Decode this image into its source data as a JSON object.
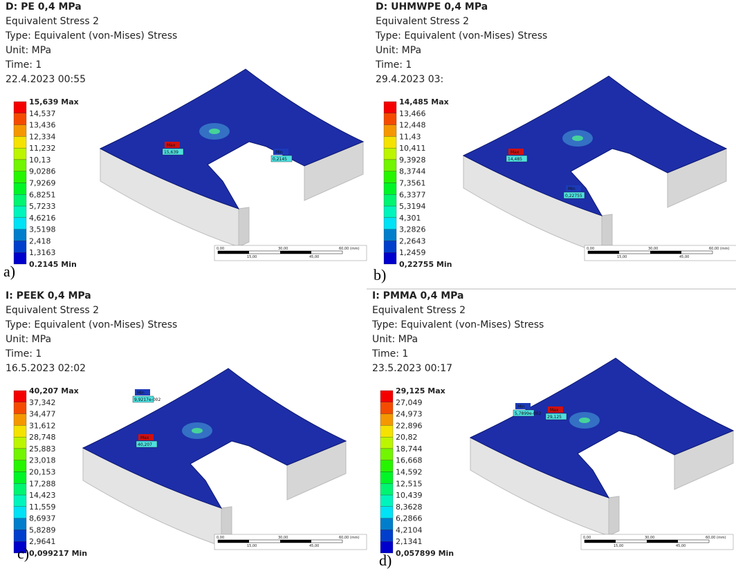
{
  "panels": [
    {
      "label": "a)",
      "header": [
        "D: PE 0,4 MPa",
        "Equivalent Stress 2",
        "Type: Equivalent (von-Mises) Stress",
        "Unit: MPa",
        "Time: 1",
        "22.4.2023 00:55"
      ],
      "legend": [
        "15,639 Max",
        "14,537",
        "13,436",
        "12,334",
        "11,232",
        "10,13",
        "9,0286",
        "7,9269",
        "6,8251",
        "5,7233",
        "4,6216",
        "3,5198",
        "2,418",
        "1,3163",
        "0.2145 Min"
      ],
      "tags": {
        "max": [
          "Max",
          "15,639"
        ],
        "min": [
          "Min",
          "0,2145"
        ]
      },
      "scale": [
        "0,00",
        "30,00",
        "60,00 (mm)",
        "15,00",
        "45,00"
      ]
    },
    {
      "label": "b)",
      "header": [
        "D: UHMWPE 0,4 MPa",
        "Equivalent Stress 2",
        "Type: Equivalent (von-Mises) Stress",
        "Unit: MPa",
        "Time: 1",
        "29.4.2023 03:"
      ],
      "legend": [
        "14,485 Max",
        "13,466",
        "12,448",
        "11,43",
        "10,411",
        "9,3928",
        "8,3744",
        "7,3561",
        "6,3377",
        "5,3194",
        "4,301",
        "3,2826",
        "2,2643",
        "1,2459",
        "0,22755 Min"
      ],
      "tags": {
        "max": [
          "Max",
          "14,485"
        ],
        "min": [
          "Min",
          "0,22755"
        ]
      },
      "scale": [
        "0,00",
        "30,00",
        "60,00 (mm)",
        "15,00",
        "45,00"
      ]
    },
    {
      "label": "c)",
      "header": [
        "I: PEEK 0,4 MPa",
        "Equivalent Stress 2",
        "Type: Equivalent (von-Mises) Stress",
        "Unit: MPa",
        "Time: 1",
        "16.5.2023 02:02"
      ],
      "legend": [
        "40,207 Max",
        "37,342",
        "34,477",
        "31,612",
        "28,748",
        "25,883",
        "23,018",
        "20,153",
        "17,288",
        "14,423",
        "11,559",
        "8,6937",
        "5,8289",
        "2,9641",
        "0,099217 Min"
      ],
      "tags": {
        "max": [
          "Max",
          "40,207"
        ],
        "min": [
          "Min",
          "9,9217e-002"
        ]
      },
      "scale": [
        "0,00",
        "30,00",
        "60,00 (mm)",
        "15,00",
        "45,00"
      ]
    },
    {
      "label": "d)",
      "header": [
        "I: PMMA 0,4 MPa",
        "Equivalent Stress 2",
        "Type: Equivalent (von-Mises) Stress",
        "Unit: MPa",
        "Time: 1",
        "23.5.2023 00:17"
      ],
      "legend": [
        "29,125 Max",
        "27,049",
        "24,973",
        "22,896",
        "20,82",
        "18,744",
        "16,668",
        "14,592",
        "12,515",
        "10,439",
        "8,3628",
        "6,2866",
        "4,2104",
        "2,1341",
        "0,057899 Min"
      ],
      "tags": {
        "max": [
          "Max",
          "29,125"
        ],
        "min": [
          "Min",
          "5,7899e-002"
        ]
      },
      "scale": [
        "0,00",
        "30,00",
        "60,00 (mm)",
        "15,00",
        "45,00"
      ]
    }
  ]
}
